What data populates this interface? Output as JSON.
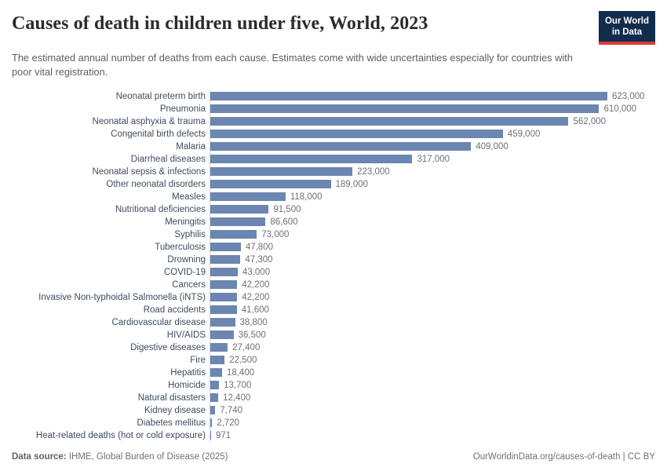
{
  "header": {
    "title": "Causes of death in children under five, World, 2023",
    "subtitle": "The estimated annual number of deaths from each cause. Estimates come with wide uncertainties especially for countries with poor vital registration.",
    "logo": {
      "line1": "Our World",
      "line2": "in Data"
    }
  },
  "chart_data": {
    "type": "bar",
    "orientation": "horizontal",
    "title": "Causes of death in children under five, World, 2023",
    "xlabel": "Estimated annual number of deaths",
    "ylabel": "",
    "xlim": [
      0,
      623000
    ],
    "grid": false,
    "legend": "none",
    "bar_color": "#6c86b2",
    "categories": [
      "Neonatal preterm birth",
      "Pneumonia",
      "Neonatal asphyxia & trauma",
      "Congenital birth defects",
      "Malaria",
      "Diarrheal diseases",
      "Neonatal sepsis & infections",
      "Other neonatal disorders",
      "Measles",
      "Nutritional deficiencies",
      "Meningitis",
      "Syphilis",
      "Tuberculosis",
      "Drowning",
      "COVID-19",
      "Cancers",
      "Invasive Non-typhoidal Salmonella (iNTS)",
      "Road accidents",
      "Cardiovascular disease",
      "HIV/AIDS",
      "Digestive diseases",
      "Fire",
      "Hepatitis",
      "Homicide",
      "Natural disasters",
      "Kidney disease",
      "Diabetes mellitus",
      "Heat-related deaths (hot or cold exposure)"
    ],
    "values": [
      623000,
      610000,
      562000,
      459000,
      409000,
      317000,
      223000,
      189000,
      118000,
      91500,
      86600,
      73000,
      47800,
      47300,
      43000,
      42200,
      42200,
      41600,
      38800,
      36500,
      27400,
      22500,
      18400,
      13700,
      12400,
      7740,
      2720,
      971
    ],
    "value_labels": [
      "623,000",
      "610,000",
      "562,000",
      "459,000",
      "409,000",
      "317,000",
      "223,000",
      "189,000",
      "118,000",
      "91,500",
      "86,600",
      "73,000",
      "47,800",
      "47,300",
      "43,000",
      "42,200",
      "42,200",
      "41,600",
      "38,800",
      "36,500",
      "27,400",
      "22,500",
      "18,400",
      "13,700",
      "12,400",
      "7,740",
      "2,720",
      "971"
    ]
  },
  "footer": {
    "datasource_label": "Data source:",
    "datasource": " IHME, Global Burden of Disease (2025)",
    "right": "OurWorldinData.org/causes-of-death | CC BY"
  }
}
